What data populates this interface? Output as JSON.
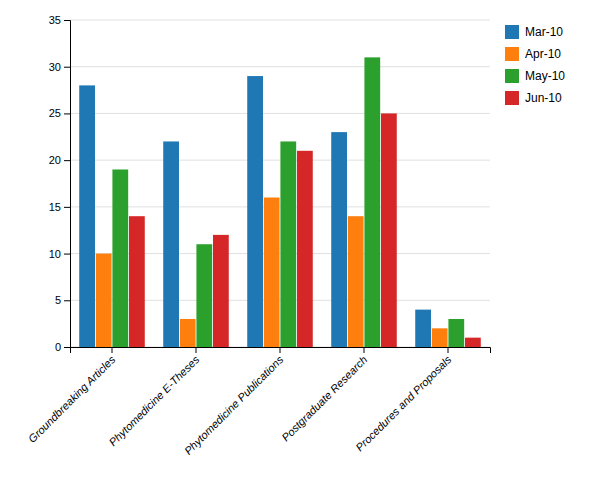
{
  "chart_data": {
    "type": "bar",
    "categories": [
      "Groundbreaking Articles",
      "Phytomedicine E-Theses",
      "Phytomedicine Publications",
      "Postgraduate Research",
      "Procedures and Proposals"
    ],
    "series": [
      {
        "name": "Mar-10",
        "values": [
          28,
          22,
          29,
          23,
          4
        ]
      },
      {
        "name": "Apr-10",
        "values": [
          10,
          3,
          16,
          14,
          2
        ]
      },
      {
        "name": "May-10",
        "values": [
          19,
          11,
          22,
          31,
          3
        ]
      },
      {
        "name": "Jun-10",
        "values": [
          14,
          12,
          21,
          25,
          1
        ]
      }
    ],
    "ylim": [
      0,
      35
    ],
    "yticks": [
      0,
      5,
      10,
      15,
      20,
      25,
      30,
      35
    ],
    "grid": true,
    "legend": "right"
  }
}
